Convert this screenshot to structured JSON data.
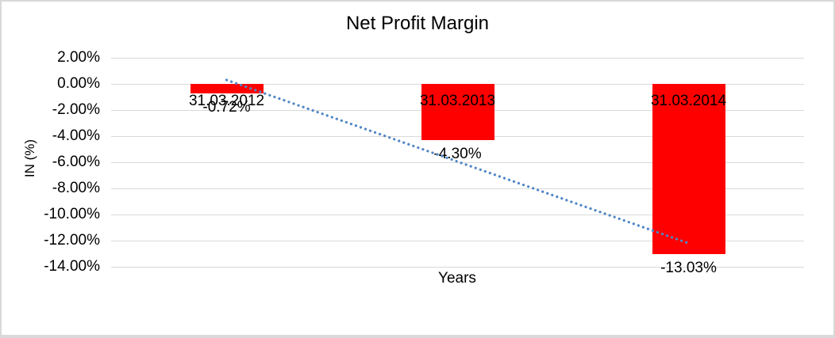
{
  "chart_data": {
    "type": "bar",
    "title": "Net Profit Margin",
    "xlabel": "Years",
    "ylabel": "IN (%)",
    "categories": [
      "31.03.2012",
      "31.03.2013",
      "31.03.2014"
    ],
    "values": [
      -0.72,
      -4.3,
      -13.03
    ],
    "data_labels": [
      "-0.72%",
      "-4.30%",
      "-13.03%"
    ],
    "y_ticks": [
      "2.00%",
      "0.00%",
      "-2.00%",
      "-4.00%",
      "-6.00%",
      "-8.00%",
      "-10.00%",
      "-12.00%",
      "-14.00%"
    ],
    "y_tick_values": [
      2,
      0,
      -2,
      -4,
      -6,
      -8,
      -10,
      -12,
      -14
    ],
    "ylim": [
      -14,
      2
    ],
    "grid": true,
    "legend": "none",
    "bar_color": "#ff0000",
    "gridline_color": "#d9d9d9",
    "text_color": "#000000",
    "trendline": {
      "type": "linear",
      "style": "dotted",
      "color": "#4f86c6",
      "start_value": 0.3,
      "end_value": -12.2
    }
  }
}
